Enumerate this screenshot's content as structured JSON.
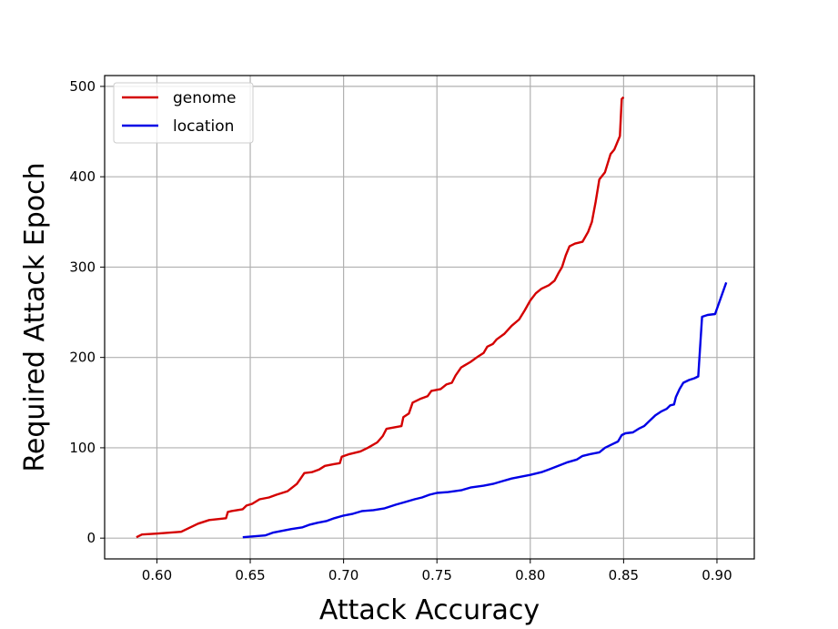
{
  "chart_data": {
    "type": "line",
    "title": "",
    "xlabel": "Attack Accuracy",
    "ylabel": "Required Attack Epoch",
    "xlim": [
      0.572,
      0.92
    ],
    "ylim": [
      -23,
      512
    ],
    "xticks": [
      0.6,
      0.65,
      0.7,
      0.75,
      0.8,
      0.85,
      0.9
    ],
    "xtick_labels": [
      "0.60",
      "0.65",
      "0.70",
      "0.75",
      "0.80",
      "0.85",
      "0.90"
    ],
    "yticks": [
      0,
      100,
      200,
      300,
      400,
      500
    ],
    "ytick_labels": [
      "0",
      "100",
      "200",
      "300",
      "400",
      "500"
    ],
    "grid": true,
    "legend_position": "top-left",
    "series": [
      {
        "name": "genome",
        "color": "#d40000",
        "points": [
          [
            0.589,
            1
          ],
          [
            0.592,
            4
          ],
          [
            0.6,
            5
          ],
          [
            0.613,
            7
          ],
          [
            0.622,
            16
          ],
          [
            0.628,
            20
          ],
          [
            0.637,
            22
          ],
          [
            0.638,
            29
          ],
          [
            0.64,
            30
          ],
          [
            0.646,
            32
          ],
          [
            0.648,
            36
          ],
          [
            0.651,
            38
          ],
          [
            0.655,
            43
          ],
          [
            0.66,
            45
          ],
          [
            0.664,
            48
          ],
          [
            0.67,
            52
          ],
          [
            0.675,
            60
          ],
          [
            0.677,
            66
          ],
          [
            0.679,
            72
          ],
          [
            0.683,
            73
          ],
          [
            0.687,
            76
          ],
          [
            0.69,
            80
          ],
          [
            0.695,
            82
          ],
          [
            0.698,
            83
          ],
          [
            0.699,
            90
          ],
          [
            0.703,
            93
          ],
          [
            0.709,
            96
          ],
          [
            0.713,
            100
          ],
          [
            0.718,
            106
          ],
          [
            0.721,
            113
          ],
          [
            0.723,
            121
          ],
          [
            0.731,
            124
          ],
          [
            0.732,
            134
          ],
          [
            0.735,
            138
          ],
          [
            0.737,
            150
          ],
          [
            0.741,
            154
          ],
          [
            0.745,
            157
          ],
          [
            0.747,
            163
          ],
          [
            0.752,
            165
          ],
          [
            0.755,
            170
          ],
          [
            0.758,
            172
          ],
          [
            0.76,
            180
          ],
          [
            0.763,
            189
          ],
          [
            0.768,
            195
          ],
          [
            0.772,
            201
          ],
          [
            0.775,
            205
          ],
          [
            0.777,
            212
          ],
          [
            0.78,
            215
          ],
          [
            0.782,
            220
          ],
          [
            0.786,
            226
          ],
          [
            0.79,
            235
          ],
          [
            0.794,
            242
          ],
          [
            0.797,
            252
          ],
          [
            0.8,
            263
          ],
          [
            0.803,
            271
          ],
          [
            0.806,
            276
          ],
          [
            0.81,
            280
          ],
          [
            0.813,
            285
          ],
          [
            0.815,
            293
          ],
          [
            0.817,
            300
          ],
          [
            0.819,
            313
          ],
          [
            0.821,
            323
          ],
          [
            0.824,
            326
          ],
          [
            0.828,
            328
          ],
          [
            0.831,
            339
          ],
          [
            0.833,
            350
          ],
          [
            0.835,
            372
          ],
          [
            0.837,
            397
          ],
          [
            0.84,
            405
          ],
          [
            0.843,
            425
          ],
          [
            0.845,
            430
          ],
          [
            0.848,
            445
          ],
          [
            0.849,
            486
          ],
          [
            0.85,
            488
          ]
        ]
      },
      {
        "name": "location",
        "color": "#0000e6",
        "points": [
          [
            0.646,
            1
          ],
          [
            0.652,
            2
          ],
          [
            0.658,
            3
          ],
          [
            0.662,
            6
          ],
          [
            0.667,
            8
          ],
          [
            0.672,
            10
          ],
          [
            0.678,
            12
          ],
          [
            0.682,
            15
          ],
          [
            0.686,
            17
          ],
          [
            0.691,
            19
          ],
          [
            0.695,
            22
          ],
          [
            0.7,
            25
          ],
          [
            0.705,
            27
          ],
          [
            0.71,
            30
          ],
          [
            0.716,
            31
          ],
          [
            0.722,
            33
          ],
          [
            0.728,
            37
          ],
          [
            0.733,
            40
          ],
          [
            0.738,
            43
          ],
          [
            0.742,
            45
          ],
          [
            0.746,
            48
          ],
          [
            0.75,
            50
          ],
          [
            0.756,
            51
          ],
          [
            0.763,
            53
          ],
          [
            0.768,
            56
          ],
          [
            0.775,
            58
          ],
          [
            0.78,
            60
          ],
          [
            0.785,
            63
          ],
          [
            0.79,
            66
          ],
          [
            0.795,
            68
          ],
          [
            0.8,
            70
          ],
          [
            0.806,
            73
          ],
          [
            0.81,
            76
          ],
          [
            0.815,
            80
          ],
          [
            0.82,
            84
          ],
          [
            0.825,
            87
          ],
          [
            0.828,
            91
          ],
          [
            0.832,
            93
          ],
          [
            0.837,
            95
          ],
          [
            0.84,
            100
          ],
          [
            0.843,
            103
          ],
          [
            0.847,
            107
          ],
          [
            0.849,
            114
          ],
          [
            0.851,
            116
          ],
          [
            0.855,
            117
          ],
          [
            0.858,
            121
          ],
          [
            0.861,
            124
          ],
          [
            0.864,
            130
          ],
          [
            0.867,
            136
          ],
          [
            0.87,
            140
          ],
          [
            0.873,
            143
          ],
          [
            0.875,
            147
          ],
          [
            0.877,
            148
          ],
          [
            0.878,
            156
          ],
          [
            0.88,
            165
          ],
          [
            0.882,
            172
          ],
          [
            0.885,
            175
          ],
          [
            0.888,
            177
          ],
          [
            0.89,
            179
          ],
          [
            0.892,
            245
          ],
          [
            0.895,
            247
          ],
          [
            0.899,
            248
          ],
          [
            0.905,
            283
          ]
        ]
      }
    ]
  }
}
